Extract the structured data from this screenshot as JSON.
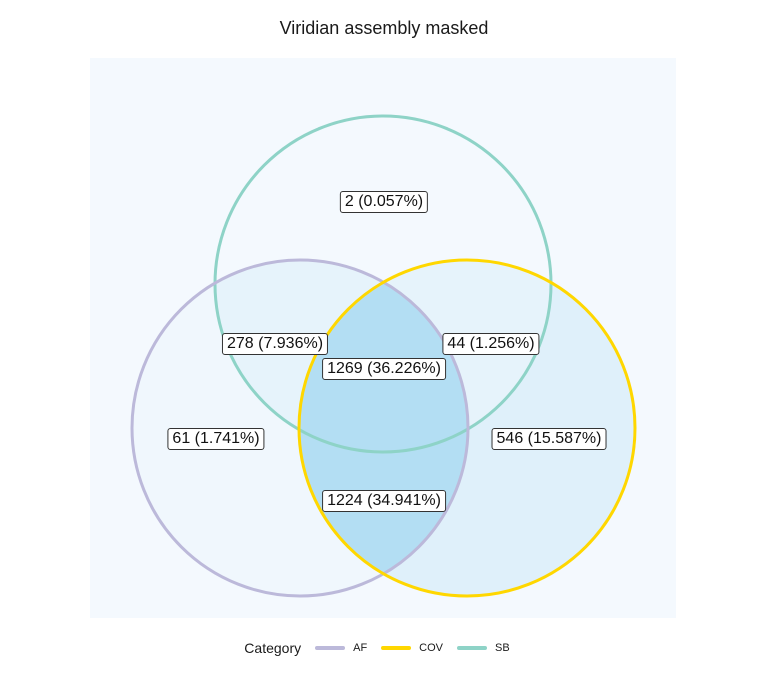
{
  "title": "Viridian assembly masked",
  "colors": {
    "panel_bg": "#f4f9fe",
    "af": "#bcb9da",
    "cov": "#ffd700",
    "sb": "#8ed3c7",
    "region_light": "#e6f3fb",
    "region_mid": "#dff0fa",
    "region_center": "#b3def3"
  },
  "sets": [
    {
      "id": "af",
      "name": "AF"
    },
    {
      "id": "cov",
      "name": "COV"
    },
    {
      "id": "sb",
      "name": "SB"
    }
  ],
  "regions": [
    {
      "id": "sb_only",
      "sets": [
        "SB"
      ],
      "label": "2 (0.057%)"
    },
    {
      "id": "af_sb",
      "sets": [
        "AF",
        "SB"
      ],
      "label": "278 (7.936%)"
    },
    {
      "id": "cov_sb",
      "sets": [
        "COV",
        "SB"
      ],
      "label": "44 (1.256%)"
    },
    {
      "id": "af_cov_sb",
      "sets": [
        "AF",
        "COV",
        "SB"
      ],
      "label": "1269 (36.226%)"
    },
    {
      "id": "af_only",
      "sets": [
        "AF"
      ],
      "label": "61 (1.741%)"
    },
    {
      "id": "cov_only",
      "sets": [
        "COV"
      ],
      "label": "546 (15.587%)"
    },
    {
      "id": "af_cov",
      "sets": [
        "AF",
        "COV"
      ],
      "label": "1224 (34.941%)"
    }
  ],
  "legend": {
    "title": "Category",
    "items": [
      "AF",
      "COV",
      "SB"
    ]
  }
}
